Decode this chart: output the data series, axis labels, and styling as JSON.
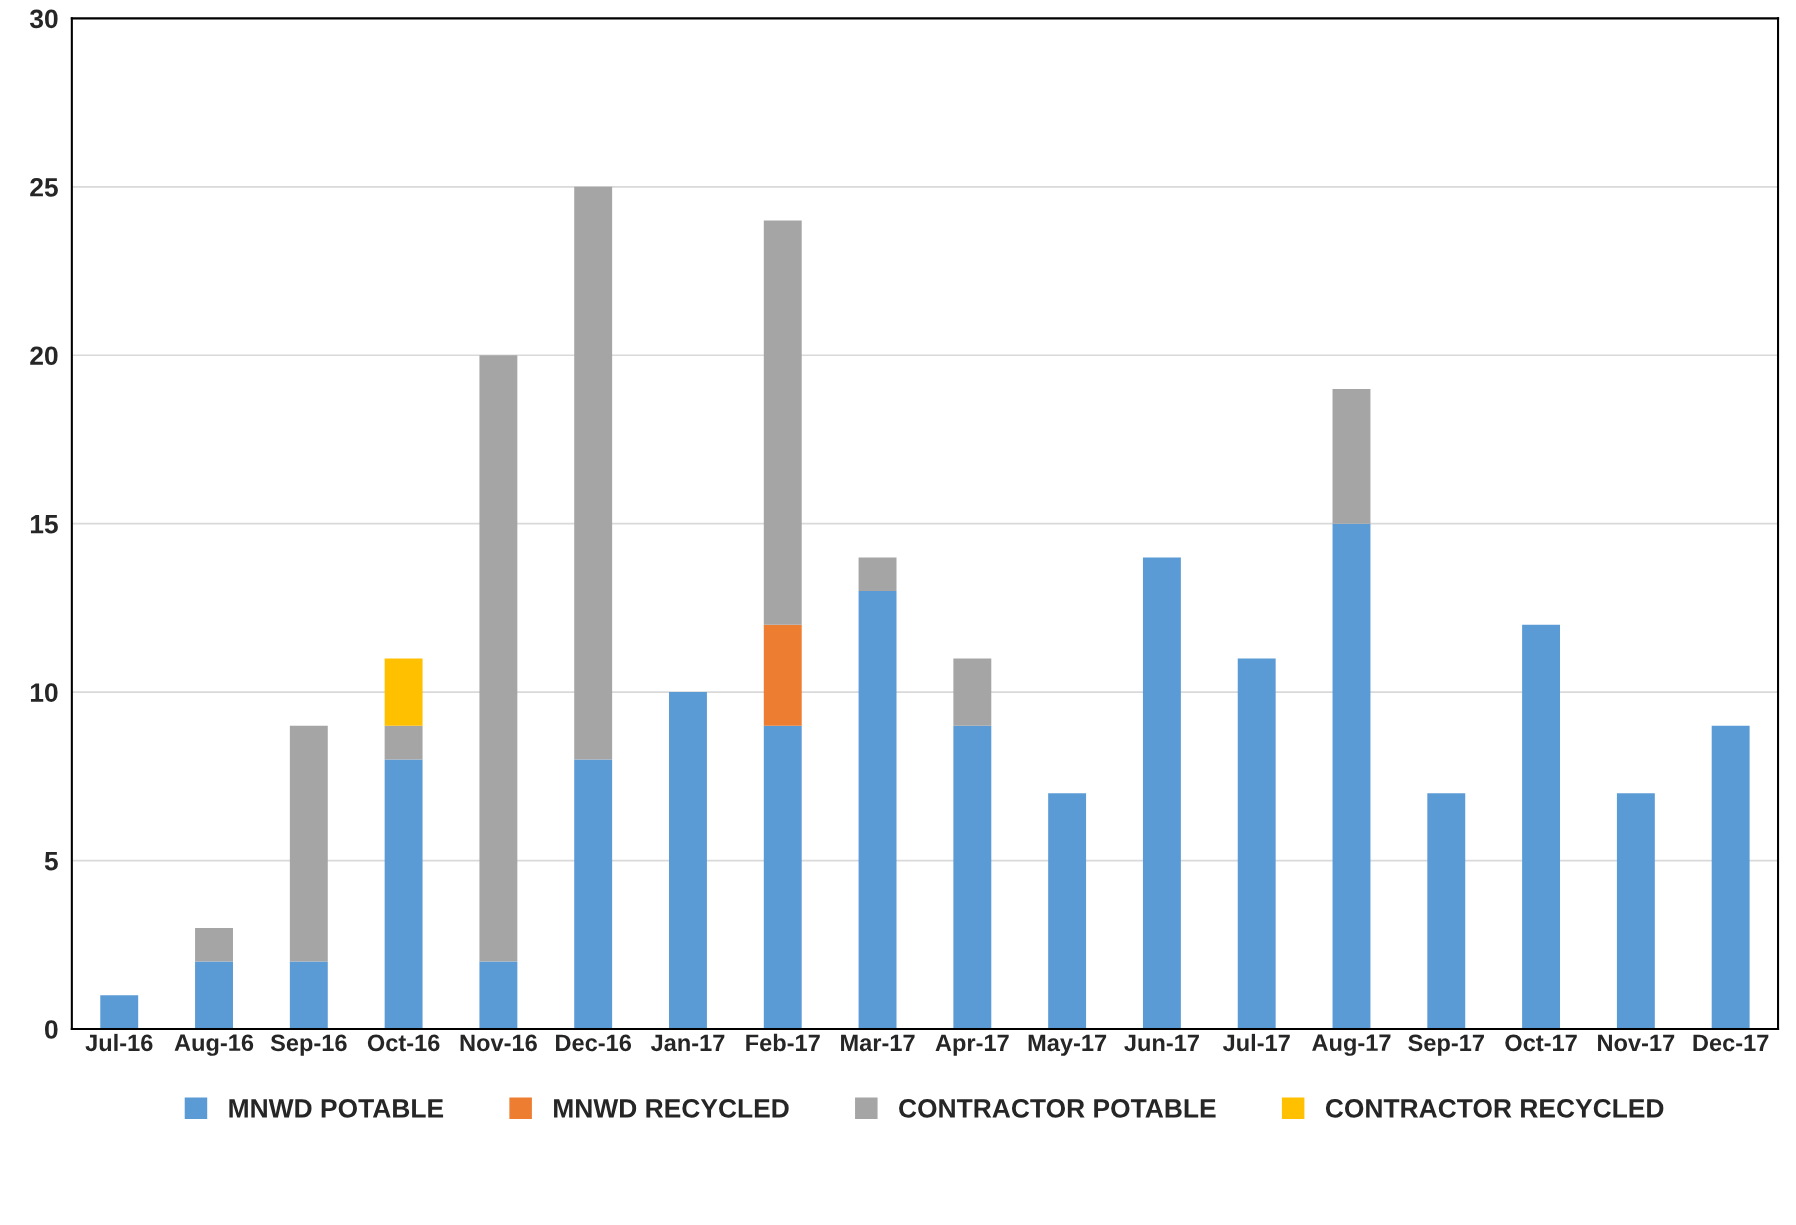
{
  "chart_data": {
    "type": "bar",
    "stacked": true,
    "categories": [
      "Jul-16",
      "Aug-16",
      "Sep-16",
      "Oct-16",
      "Nov-16",
      "Dec-16",
      "Jan-17",
      "Feb-17",
      "Mar-17",
      "Apr-17",
      "May-17",
      "Jun-17",
      "Jul-17",
      "Aug-17",
      "Sep-17",
      "Oct-17",
      "Nov-17",
      "Dec-17"
    ],
    "series": [
      {
        "name": "MNWD POTABLE",
        "color": "#5b9bd5",
        "values": [
          1,
          2,
          2,
          8,
          2,
          8,
          10,
          9,
          13,
          9,
          7,
          14,
          11,
          15,
          7,
          12,
          7,
          9
        ]
      },
      {
        "name": "MNWD RECYCLED",
        "color": "#ed7d31",
        "values": [
          null,
          null,
          null,
          null,
          null,
          null,
          null,
          3,
          null,
          null,
          null,
          null,
          null,
          null,
          null,
          null,
          null,
          null
        ]
      },
      {
        "name": "CONTRACTOR POTABLE",
        "color": "#a5a5a5",
        "values": [
          null,
          1,
          7,
          1,
          18,
          17,
          null,
          12,
          1,
          2,
          null,
          null,
          null,
          4,
          null,
          null,
          null,
          null
        ]
      },
      {
        "name": "CONTRACTOR RECYCLED",
        "color": "#ffc000",
        "values": [
          null,
          null,
          null,
          2,
          null,
          null,
          null,
          null,
          null,
          null,
          null,
          null,
          null,
          null,
          null,
          null,
          null,
          null
        ]
      }
    ],
    "ylim": [
      0,
      30
    ],
    "yticks": [
      0,
      5,
      10,
      15,
      20,
      25,
      30
    ],
    "grid": "y",
    "legend": "bottom"
  }
}
